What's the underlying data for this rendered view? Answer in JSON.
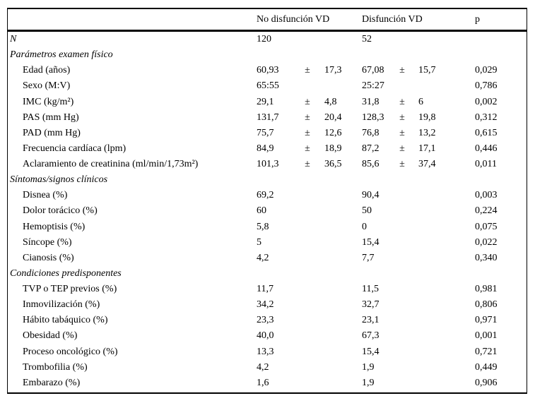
{
  "colors": {
    "text": "#000000",
    "border": "#000000",
    "background": "#ffffff"
  },
  "table": {
    "header": {
      "col1": "No disfunción VD",
      "col2": "Disfunción VD",
      "col3": "p"
    },
    "rows": [
      {
        "kind": "row",
        "label": "N",
        "italic": true,
        "indent": false,
        "g1": [
          "120",
          "",
          ""
        ],
        "g2": [
          "52",
          "",
          ""
        ],
        "p": ""
      },
      {
        "kind": "section",
        "label": "Parámetros examen físico"
      },
      {
        "kind": "row",
        "label": "Edad (años)",
        "indent": true,
        "g1": [
          "60,93",
          "±",
          "17,3"
        ],
        "g2": [
          "67,08",
          "±",
          "15,7"
        ],
        "p": "0,029"
      },
      {
        "kind": "row",
        "label": "Sexo (M:V)",
        "indent": true,
        "g1": [
          "65:55",
          "",
          ""
        ],
        "g2": [
          "25:27",
          "",
          ""
        ],
        "p": "0,786"
      },
      {
        "kind": "row",
        "label": "IMC (kg/m²)",
        "indent": true,
        "g1": [
          "29,1",
          "±",
          "4,8"
        ],
        "g2": [
          "31,8",
          "±",
          "6"
        ],
        "p": "0,002"
      },
      {
        "kind": "row",
        "label": "PAS (mm Hg)",
        "indent": true,
        "g1": [
          "131,7",
          "±",
          "20,4"
        ],
        "g2": [
          "128,3",
          "±",
          "19,8"
        ],
        "p": "0,312"
      },
      {
        "kind": "row",
        "label": "PAD (mm Hg)",
        "indent": true,
        "g1": [
          "75,7",
          "±",
          "12,6"
        ],
        "g2": [
          "76,8",
          "±",
          "13,2"
        ],
        "p": "0,615"
      },
      {
        "kind": "row",
        "label": "Frecuencia cardíaca (lpm)",
        "indent": true,
        "g1": [
          "84,9",
          "±",
          "18,9"
        ],
        "g2": [
          "87,2",
          "±",
          "17,1"
        ],
        "p": "0,446"
      },
      {
        "kind": "row",
        "label": "Aclaramiento de creatinina (ml/min/1,73m²)",
        "indent": true,
        "g1": [
          "101,3",
          "±",
          "36,5"
        ],
        "g2": [
          "85,6",
          "±",
          "37,4"
        ],
        "p": "0,011"
      },
      {
        "kind": "section",
        "label": "Síntomas/signos clínicos"
      },
      {
        "kind": "row",
        "label": "Disnea (%)",
        "indent": true,
        "g1": [
          "69,2",
          "",
          ""
        ],
        "g2": [
          "90,4",
          "",
          ""
        ],
        "p": "0,003"
      },
      {
        "kind": "row",
        "label": "Dolor torácico (%)",
        "indent": true,
        "g1": [
          "60",
          "",
          ""
        ],
        "g2": [
          "50",
          "",
          ""
        ],
        "p": "0,224"
      },
      {
        "kind": "row",
        "label": "Hemoptisis (%)",
        "indent": true,
        "g1": [
          "5,8",
          "",
          ""
        ],
        "g2": [
          "0",
          "",
          ""
        ],
        "p": "0,075"
      },
      {
        "kind": "row",
        "label": "Síncope (%)",
        "indent": true,
        "g1": [
          "5",
          "",
          ""
        ],
        "g2": [
          "15,4",
          "",
          ""
        ],
        "p": "0,022"
      },
      {
        "kind": "row",
        "label": "Cianosis (%)",
        "indent": true,
        "g1": [
          "4,2",
          "",
          ""
        ],
        "g2": [
          "7,7",
          "",
          ""
        ],
        "p": "0,340"
      },
      {
        "kind": "section",
        "label": "Condiciones predisponentes"
      },
      {
        "kind": "row",
        "label": "TVP o TEP previos (%)",
        "indent": true,
        "g1": [
          "11,7",
          "",
          ""
        ],
        "g2": [
          "11,5",
          "",
          ""
        ],
        "p": "0,981"
      },
      {
        "kind": "row",
        "label": "Inmovilización (%)",
        "indent": true,
        "g1": [
          "34,2",
          "",
          ""
        ],
        "g2": [
          "32,7",
          "",
          ""
        ],
        "p": "0,806"
      },
      {
        "kind": "row",
        "label": "Hábito tabáquico (%)",
        "indent": true,
        "g1": [
          "23,3",
          "",
          ""
        ],
        "g2": [
          "23,1",
          "",
          ""
        ],
        "p": "0,971"
      },
      {
        "kind": "row",
        "label": "Obesidad (%)",
        "indent": true,
        "g1": [
          "40,0",
          "",
          ""
        ],
        "g2": [
          "67,3",
          "",
          ""
        ],
        "p": "0,001"
      },
      {
        "kind": "row",
        "label": "Proceso oncológico (%)",
        "indent": true,
        "g1": [
          "13,3",
          "",
          ""
        ],
        "g2": [
          "15,4",
          "",
          ""
        ],
        "p": "0,721"
      },
      {
        "kind": "row",
        "label": "Trombofilia (%)",
        "indent": true,
        "g1": [
          "4,2",
          "",
          ""
        ],
        "g2": [
          "1,9",
          "",
          ""
        ],
        "p": "0,449"
      },
      {
        "kind": "row",
        "label": "Embarazo (%)",
        "indent": true,
        "g1": [
          "1,6",
          "",
          ""
        ],
        "g2": [
          "1,9",
          "",
          ""
        ],
        "p": "0,906"
      }
    ]
  }
}
